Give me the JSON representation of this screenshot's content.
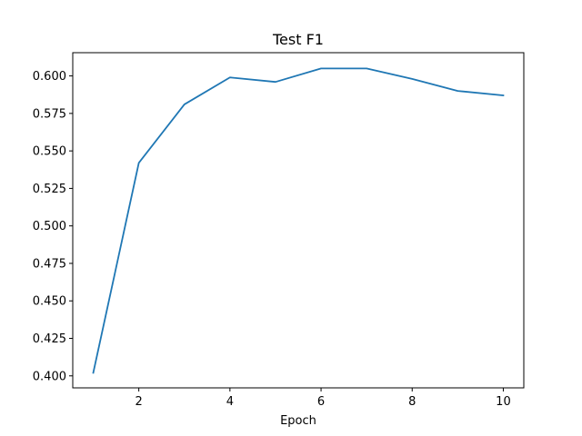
{
  "chart_data": {
    "type": "line",
    "title": "Test F1",
    "xlabel": "Epoch",
    "ylabel": "",
    "xlim": [
      0.55,
      10.45
    ],
    "ylim": [
      0.392,
      0.6155
    ],
    "grid": false,
    "legend": "none",
    "xticks": [
      2,
      4,
      6,
      8,
      10
    ],
    "xtick_labels": [
      "2",
      "4",
      "6",
      "8",
      "10"
    ],
    "yticks": [
      0.4,
      0.425,
      0.45,
      0.475,
      0.5,
      0.525,
      0.55,
      0.575,
      0.6
    ],
    "ytick_labels": [
      "0.400",
      "0.425",
      "0.450",
      "0.475",
      "0.500",
      "0.525",
      "0.550",
      "0.575",
      "0.600"
    ],
    "series": [
      {
        "x": [
          1,
          2,
          3,
          4,
          5,
          6,
          7,
          8,
          9,
          10
        ],
        "values": [
          0.402,
          0.542,
          0.581,
          0.599,
          0.596,
          0.605,
          0.605,
          0.598,
          0.59,
          0.587
        ],
        "color": "#1f77b4"
      }
    ]
  }
}
